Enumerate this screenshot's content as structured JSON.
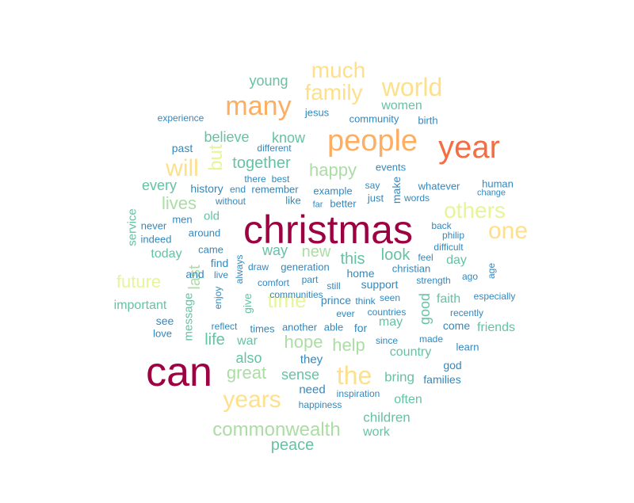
{
  "palette": {
    "c1": "#9e0142",
    "c2": "#f46d43",
    "c3": "#fdae61",
    "c4": "#fee08b",
    "c5": "#e6f598",
    "c6": "#abdda4",
    "c7": "#66c2a5",
    "c8": "#3288bd"
  },
  "words": [
    {
      "text": "christmas",
      "color": "c1"
    },
    {
      "text": "can",
      "color": "c1"
    },
    {
      "text": "year",
      "color": "c2"
    },
    {
      "text": "people",
      "color": "c3"
    },
    {
      "text": "many",
      "color": "c3"
    },
    {
      "text": "world",
      "color": "c4"
    },
    {
      "text": "much",
      "color": "c4"
    },
    {
      "text": "family",
      "color": "c4"
    },
    {
      "text": "will",
      "color": "c4"
    },
    {
      "text": "one",
      "color": "c4"
    },
    {
      "text": "the",
      "color": "c4"
    },
    {
      "text": "years",
      "color": "c4"
    },
    {
      "text": "others",
      "color": "c5"
    },
    {
      "text": "but",
      "color": "c5"
    },
    {
      "text": "time",
      "color": "c5"
    },
    {
      "text": "commonwealth",
      "color": "c6"
    },
    {
      "text": "happy",
      "color": "c6"
    },
    {
      "text": "future",
      "color": "c5"
    },
    {
      "text": "hope",
      "color": "c6"
    },
    {
      "text": "help",
      "color": "c6"
    },
    {
      "text": "great",
      "color": "c6"
    },
    {
      "text": "lives",
      "color": "c6"
    },
    {
      "text": "young",
      "color": "c7"
    },
    {
      "text": "women",
      "color": "c7"
    },
    {
      "text": "together",
      "color": "c7"
    },
    {
      "text": "believe",
      "color": "c7"
    },
    {
      "text": "know",
      "color": "c7"
    },
    {
      "text": "every",
      "color": "c7"
    },
    {
      "text": "new",
      "color": "c6"
    },
    {
      "text": "this",
      "color": "c7"
    },
    {
      "text": "look",
      "color": "c7"
    },
    {
      "text": "way",
      "color": "c7"
    },
    {
      "text": "last",
      "color": "c6"
    },
    {
      "text": "good",
      "color": "c7"
    },
    {
      "text": "also",
      "color": "c7"
    },
    {
      "text": "life",
      "color": "c7"
    },
    {
      "text": "war",
      "color": "c7"
    },
    {
      "text": "sense",
      "color": "c7"
    },
    {
      "text": "peace",
      "color": "c7"
    },
    {
      "text": "work",
      "color": "c7"
    },
    {
      "text": "children",
      "color": "c7"
    },
    {
      "text": "often",
      "color": "c7"
    },
    {
      "text": "bring",
      "color": "c7"
    },
    {
      "text": "country",
      "color": "c7"
    },
    {
      "text": "may",
      "color": "c7"
    },
    {
      "text": "friends",
      "color": "c7"
    },
    {
      "text": "faith",
      "color": "c7"
    },
    {
      "text": "day",
      "color": "c7"
    },
    {
      "text": "today",
      "color": "c7"
    },
    {
      "text": "important",
      "color": "c7"
    },
    {
      "text": "message",
      "color": "c7"
    },
    {
      "text": "service",
      "color": "c7"
    },
    {
      "text": "old",
      "color": "c7"
    },
    {
      "text": "give",
      "color": "c7"
    },
    {
      "text": "experience",
      "color": "c8"
    },
    {
      "text": "jesus",
      "color": "c8"
    },
    {
      "text": "community",
      "color": "c8"
    },
    {
      "text": "birth",
      "color": "c8"
    },
    {
      "text": "past",
      "color": "c8"
    },
    {
      "text": "different",
      "color": "c8"
    },
    {
      "text": "events",
      "color": "c8"
    },
    {
      "text": "there",
      "color": "c8"
    },
    {
      "text": "best",
      "color": "c8"
    },
    {
      "text": "history",
      "color": "c8"
    },
    {
      "text": "end",
      "color": "c8"
    },
    {
      "text": "remember",
      "color": "c8"
    },
    {
      "text": "example",
      "color": "c8"
    },
    {
      "text": "say",
      "color": "c8"
    },
    {
      "text": "make",
      "color": "c8"
    },
    {
      "text": "whatever",
      "color": "c8"
    },
    {
      "text": "human",
      "color": "c8"
    },
    {
      "text": "change",
      "color": "c8"
    },
    {
      "text": "without",
      "color": "c8"
    },
    {
      "text": "like",
      "color": "c8"
    },
    {
      "text": "far",
      "color": "c8"
    },
    {
      "text": "better",
      "color": "c8"
    },
    {
      "text": "just",
      "color": "c8"
    },
    {
      "text": "words",
      "color": "c8"
    },
    {
      "text": "men",
      "color": "c8"
    },
    {
      "text": "back",
      "color": "c8"
    },
    {
      "text": "never",
      "color": "c8"
    },
    {
      "text": "around",
      "color": "c8"
    },
    {
      "text": "philip",
      "color": "c8"
    },
    {
      "text": "indeed",
      "color": "c8"
    },
    {
      "text": "difficult",
      "color": "c8"
    },
    {
      "text": "came",
      "color": "c8"
    },
    {
      "text": "feel",
      "color": "c8"
    },
    {
      "text": "find",
      "color": "c8"
    },
    {
      "text": "always",
      "color": "c8"
    },
    {
      "text": "christian",
      "color": "c8"
    },
    {
      "text": "age",
      "color": "c8"
    },
    {
      "text": "and",
      "color": "c8"
    },
    {
      "text": "live",
      "color": "c8"
    },
    {
      "text": "draw",
      "color": "c8"
    },
    {
      "text": "generation",
      "color": "c8"
    },
    {
      "text": "home",
      "color": "c8"
    },
    {
      "text": "ago",
      "color": "c8"
    },
    {
      "text": "strength",
      "color": "c8"
    },
    {
      "text": "comfort",
      "color": "c8"
    },
    {
      "text": "part",
      "color": "c8"
    },
    {
      "text": "enjoy",
      "color": "c8"
    },
    {
      "text": "still",
      "color": "c8"
    },
    {
      "text": "support",
      "color": "c8"
    },
    {
      "text": "communities",
      "color": "c8"
    },
    {
      "text": "prince",
      "color": "c8"
    },
    {
      "text": "think",
      "color": "c8"
    },
    {
      "text": "seen",
      "color": "c8"
    },
    {
      "text": "especially",
      "color": "c8"
    },
    {
      "text": "ever",
      "color": "c8"
    },
    {
      "text": "countries",
      "color": "c8"
    },
    {
      "text": "see",
      "color": "c8"
    },
    {
      "text": "reflect",
      "color": "c8"
    },
    {
      "text": "times",
      "color": "c8"
    },
    {
      "text": "another",
      "color": "c8"
    },
    {
      "text": "able",
      "color": "c8"
    },
    {
      "text": "for",
      "color": "c8"
    },
    {
      "text": "come",
      "color": "c8"
    },
    {
      "text": "love",
      "color": "c8"
    },
    {
      "text": "since",
      "color": "c8"
    },
    {
      "text": "made",
      "color": "c8"
    },
    {
      "text": "learn",
      "color": "c8"
    },
    {
      "text": "they",
      "color": "c8"
    },
    {
      "text": "god",
      "color": "c8"
    },
    {
      "text": "families",
      "color": "c8"
    },
    {
      "text": "need",
      "color": "c8"
    },
    {
      "text": "inspiration",
      "color": "c8"
    },
    {
      "text": "happiness",
      "color": "c8"
    },
    {
      "text": "recently",
      "color": "c8"
    }
  ]
}
